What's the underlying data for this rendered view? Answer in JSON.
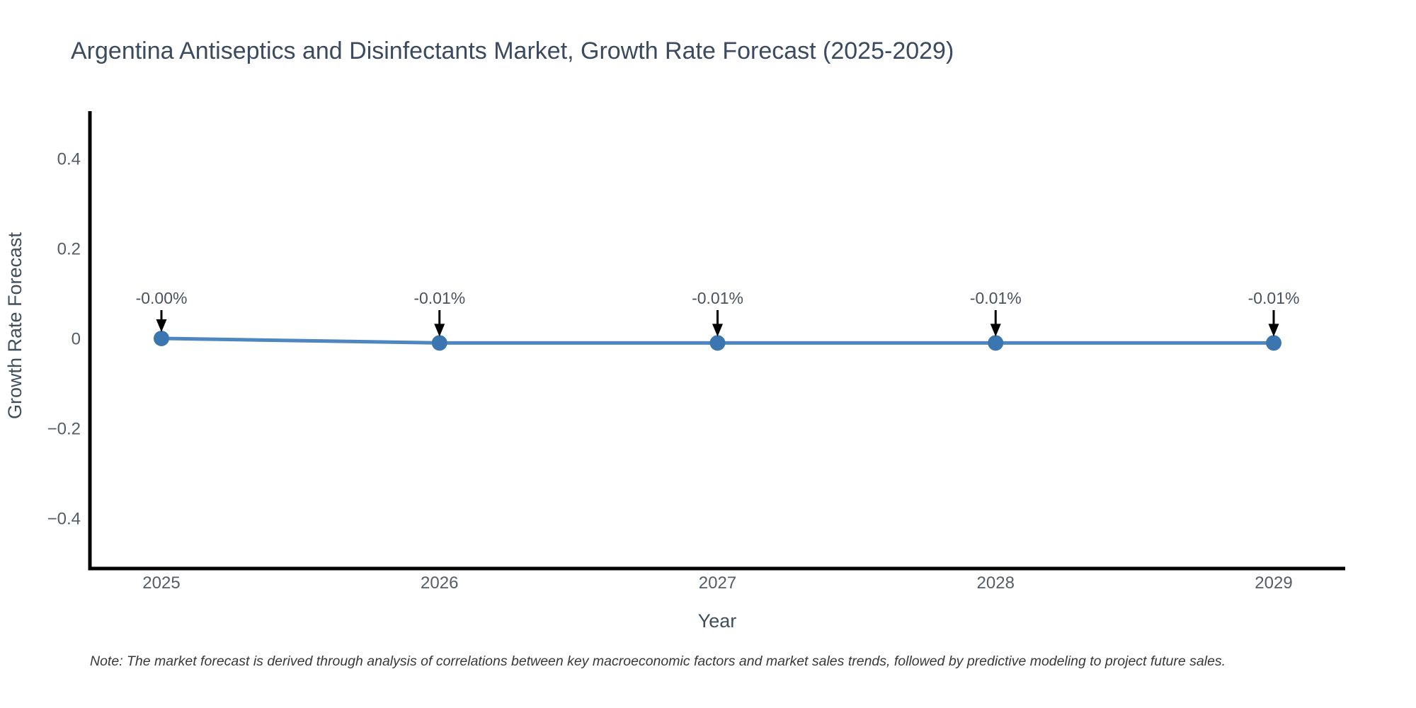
{
  "chart_data": {
    "type": "line",
    "title": "Argentina Antiseptics and Disinfectants Market, Growth Rate Forecast (2025-2029)",
    "xlabel": "Year",
    "ylabel": "Growth Rate Forecast",
    "categories": [
      "2025",
      "2026",
      "2027",
      "2028",
      "2029"
    ],
    "series": [
      {
        "name": "Growth Rate Forecast",
        "values": [
          -0.0,
          -0.01,
          -0.01,
          -0.01,
          -0.01
        ],
        "point_labels": [
          "-0.00%",
          "-0.01%",
          "-0.01%",
          "-0.01%",
          "-0.01%"
        ]
      }
    ],
    "y_ticks": [
      {
        "label": "0.4",
        "value": 0.4
      },
      {
        "label": "0.2",
        "value": 0.2
      },
      {
        "label": "0",
        "value": 0.0
      },
      {
        "label": "−0.2",
        "value": -0.2
      },
      {
        "label": "−0.4",
        "value": -0.4
      }
    ],
    "ylim": [
      -0.52,
      0.52
    ],
    "grid": false,
    "legend": false,
    "note": "Note: The market forecast is derived through analysis of correlations between key macroeconomic factors and market sales trends, followed by predictive modeling to project future sales."
  },
  "colors": {
    "line": "#4e86bf",
    "marker": "#3c76b0",
    "axis_line": "#000000",
    "arrow": "#000000",
    "title_text": "#3b4a5e",
    "axis_title_text": "#404e5c",
    "tick_text": "#545d68",
    "annotation_text": "#4a525e",
    "note_text": "#383838",
    "background": "#ffffff"
  }
}
